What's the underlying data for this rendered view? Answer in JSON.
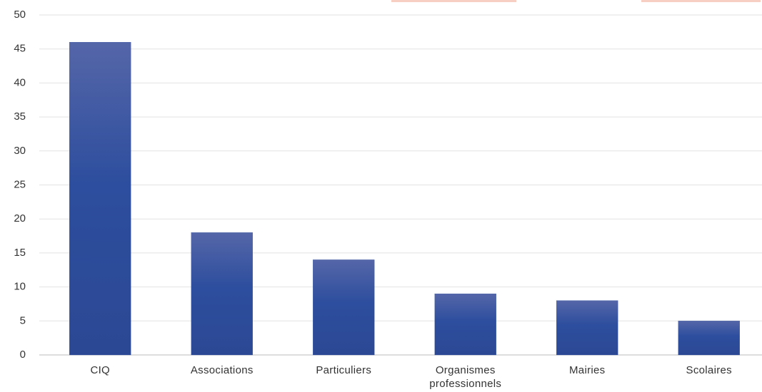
{
  "chart_data": {
    "type": "bar",
    "categories": [
      "CIQ",
      "Associations",
      "Particuliers",
      "Organismes professionnels",
      "Mairies",
      "Scolaires"
    ],
    "values": [
      46,
      18,
      14,
      9,
      8,
      5
    ],
    "color": "#2b4b9b",
    "ylim": [
      0,
      50
    ],
    "yticks": [
      0,
      5,
      10,
      15,
      20,
      25,
      30,
      35,
      40,
      45,
      50
    ],
    "grid": true
  }
}
